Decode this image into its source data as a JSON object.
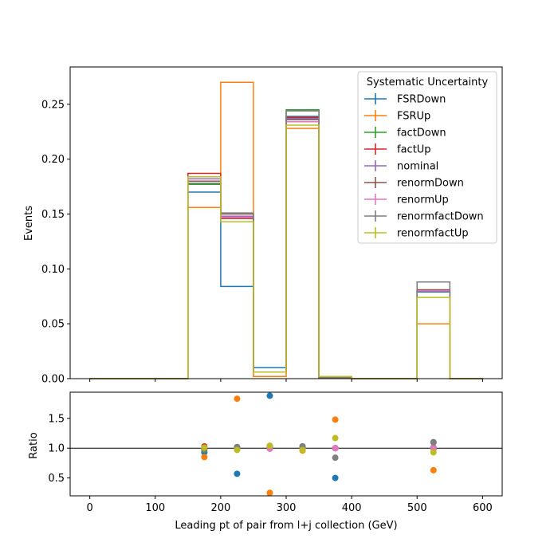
{
  "chart_data": [
    {
      "type": "line",
      "subtype": "step-histogram",
      "title": "",
      "xlabel": "",
      "ylabel": "Events",
      "xlim": [
        -30,
        630
      ],
      "ylim": [
        0,
        0.284
      ],
      "grid": false,
      "legend_placement": "top-right",
      "legend_title": "Systematic Uncertainty",
      "bin_edges": [
        0,
        50,
        100,
        150,
        200,
        250,
        300,
        350,
        400,
        450,
        500,
        550,
        600
      ],
      "x_ticks": [
        0,
        100,
        200,
        300,
        400,
        500,
        600
      ],
      "y_ticks": [
        "0.00",
        "0.05",
        "0.10",
        "0.15",
        "0.20",
        "0.25"
      ],
      "series": [
        {
          "name": "FSRDown",
          "color": "#1f77b4",
          "values": [
            0,
            0,
            0,
            0.17,
            0.084,
            0.01,
            0.239,
            0.001,
            0,
            0,
            0.079,
            0
          ]
        },
        {
          "name": "FSRUp",
          "color": "#ff7f0e",
          "values": [
            0,
            0,
            0,
            0.156,
            0.27,
            0.002,
            0.228,
            0.002,
            0,
            0,
            0.05,
            0
          ]
        },
        {
          "name": "factDown",
          "color": "#2ca02c",
          "values": [
            0,
            0,
            0,
            0.177,
            0.146,
            0.006,
            0.245,
            0.001,
            0,
            0,
            0.088,
            0
          ]
        },
        {
          "name": "factUp",
          "color": "#d62728",
          "values": [
            0,
            0,
            0,
            0.187,
            0.146,
            0.006,
            0.238,
            0.001,
            0,
            0,
            0.08,
            0
          ]
        },
        {
          "name": "nominal",
          "color": "#9467bd",
          "values": [
            0,
            0,
            0,
            0.182,
            0.148,
            0.006,
            0.237,
            0.001,
            0,
            0,
            0.08,
            0
          ]
        },
        {
          "name": "renormDown",
          "color": "#8c564b",
          "values": [
            0,
            0,
            0,
            0.18,
            0.15,
            0.006,
            0.236,
            0.001,
            0,
            0,
            0.081,
            0
          ]
        },
        {
          "name": "renormUp",
          "color": "#e377c2",
          "values": [
            0,
            0,
            0,
            0.184,
            0.147,
            0.006,
            0.234,
            0.001,
            0,
            0,
            0.08,
            0
          ]
        },
        {
          "name": "renormfactDown",
          "color": "#7f7f7f",
          "values": [
            0,
            0,
            0,
            0.178,
            0.151,
            0.006,
            0.244,
            0.001,
            0,
            0,
            0.088,
            0
          ]
        },
        {
          "name": "renormfactUp",
          "color": "#bcbd22",
          "values": [
            0,
            0,
            0,
            0.184,
            0.143,
            0.006,
            0.231,
            0.002,
            0,
            0,
            0.074,
            0
          ]
        }
      ]
    },
    {
      "type": "scatter",
      "title": "",
      "xlabel": "Leading pt of pair from l+j collection (GeV)",
      "ylabel": "Ratio",
      "xlim": [
        -30,
        630
      ],
      "ylim": [
        0.2,
        1.94
      ],
      "grid": false,
      "reference_line": 1.0,
      "x_ticks": [
        0,
        100,
        200,
        300,
        400,
        500,
        600
      ],
      "y_ticks": [
        "0.5",
        "1.0",
        "1.5"
      ],
      "x": [
        175,
        225,
        275,
        325,
        375,
        525
      ],
      "series": [
        {
          "name": "FSRDown",
          "color": "#1f77b4",
          "values": [
            0.93,
            0.57,
            1.88,
            1.01,
            0.5,
            0.99
          ]
        },
        {
          "name": "FSRUp",
          "color": "#ff7f0e",
          "values": [
            0.85,
            1.83,
            0.25,
            0.96,
            1.48,
            0.63
          ]
        },
        {
          "name": "factDown",
          "color": "#2ca02c",
          "values": [
            0.97,
            0.99,
            1.03,
            1.03,
            1.0,
            1.1
          ]
        },
        {
          "name": "factUp",
          "color": "#d62728",
          "values": [
            1.03,
            0.99,
            1.01,
            1.0,
            1.0,
            1.0
          ]
        },
        {
          "name": "nominal",
          "color": "#9467bd",
          "values": [
            1.0,
            1.0,
            1.0,
            1.0,
            1.0,
            1.0
          ]
        },
        {
          "name": "renormDown",
          "color": "#8c564b",
          "values": [
            0.99,
            1.01,
            1.01,
            1.0,
            1.0,
            1.01
          ]
        },
        {
          "name": "renormUp",
          "color": "#e377c2",
          "values": [
            1.01,
            0.99,
            0.99,
            0.99,
            1.0,
            1.0
          ]
        },
        {
          "name": "renormfactDown",
          "color": "#7f7f7f",
          "values": [
            0.98,
            1.02,
            1.04,
            1.03,
            0.84,
            1.1
          ]
        },
        {
          "name": "renormfactUp",
          "color": "#bcbd22",
          "values": [
            1.01,
            0.97,
            1.04,
            0.97,
            1.17,
            0.93
          ]
        }
      ]
    }
  ]
}
